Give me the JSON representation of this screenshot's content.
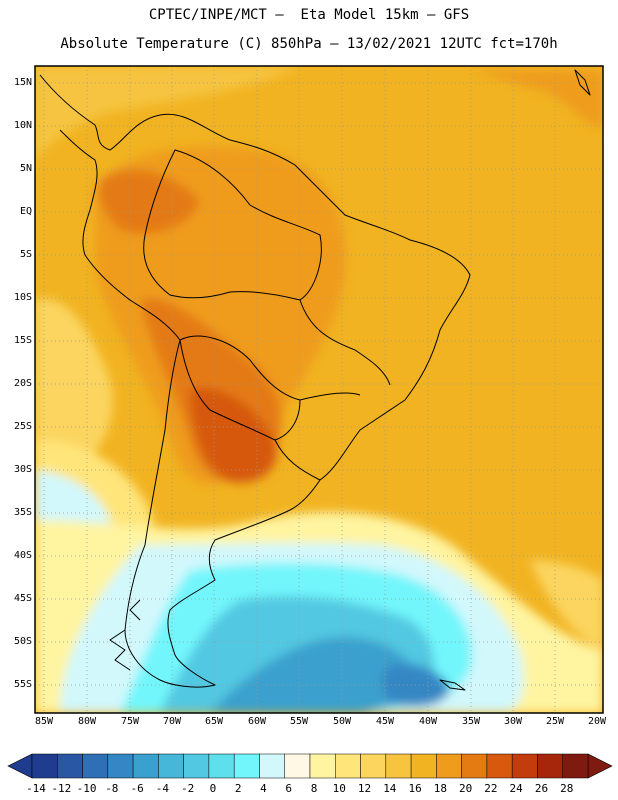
{
  "header": {
    "line1": "CPTEC/INPE/MCT –  Eta Model 15km – GFS",
    "line2": "Absolute Temperature (C) 850hPa – 13/02/2021 12UTC fct=170h"
  },
  "map": {
    "region": "South America",
    "lat_labels": [
      "15N",
      "10N",
      "5N",
      "EQ",
      "5S",
      "10S",
      "15S",
      "20S",
      "25S",
      "30S",
      "35S",
      "40S",
      "45S",
      "50S",
      "55S"
    ],
    "lon_labels": [
      "85W",
      "80W",
      "75W",
      "70W",
      "65W",
      "60W",
      "55W",
      "50W",
      "45W",
      "40W",
      "35W",
      "30W",
      "25W",
      "20W"
    ]
  },
  "colorbar": {
    "labels": [
      "-14",
      "-12",
      "-10",
      "-8",
      "-6",
      "-4",
      "-2",
      "0",
      "2",
      "4",
      "6",
      "8",
      "10",
      "12",
      "14",
      "16",
      "18",
      "20",
      "22",
      "24",
      "26",
      "28"
    ],
    "colors": [
      "#1f3c8f",
      "#2a57a3",
      "#2f6fb6",
      "#3487c4",
      "#3aa0cd",
      "#46b6d9",
      "#52c8e2",
      "#5ee0ec",
      "#72f6fb",
      "#d2f8fc",
      "#fff8e4",
      "#fff4a0",
      "#ffe57a",
      "#fbd55e",
      "#f6c43f",
      "#f1b321",
      "#ef9c1c",
      "#e47a12",
      "#d6590e",
      "#c33c0d",
      "#a6260c",
      "#7e1a10"
    ]
  }
}
